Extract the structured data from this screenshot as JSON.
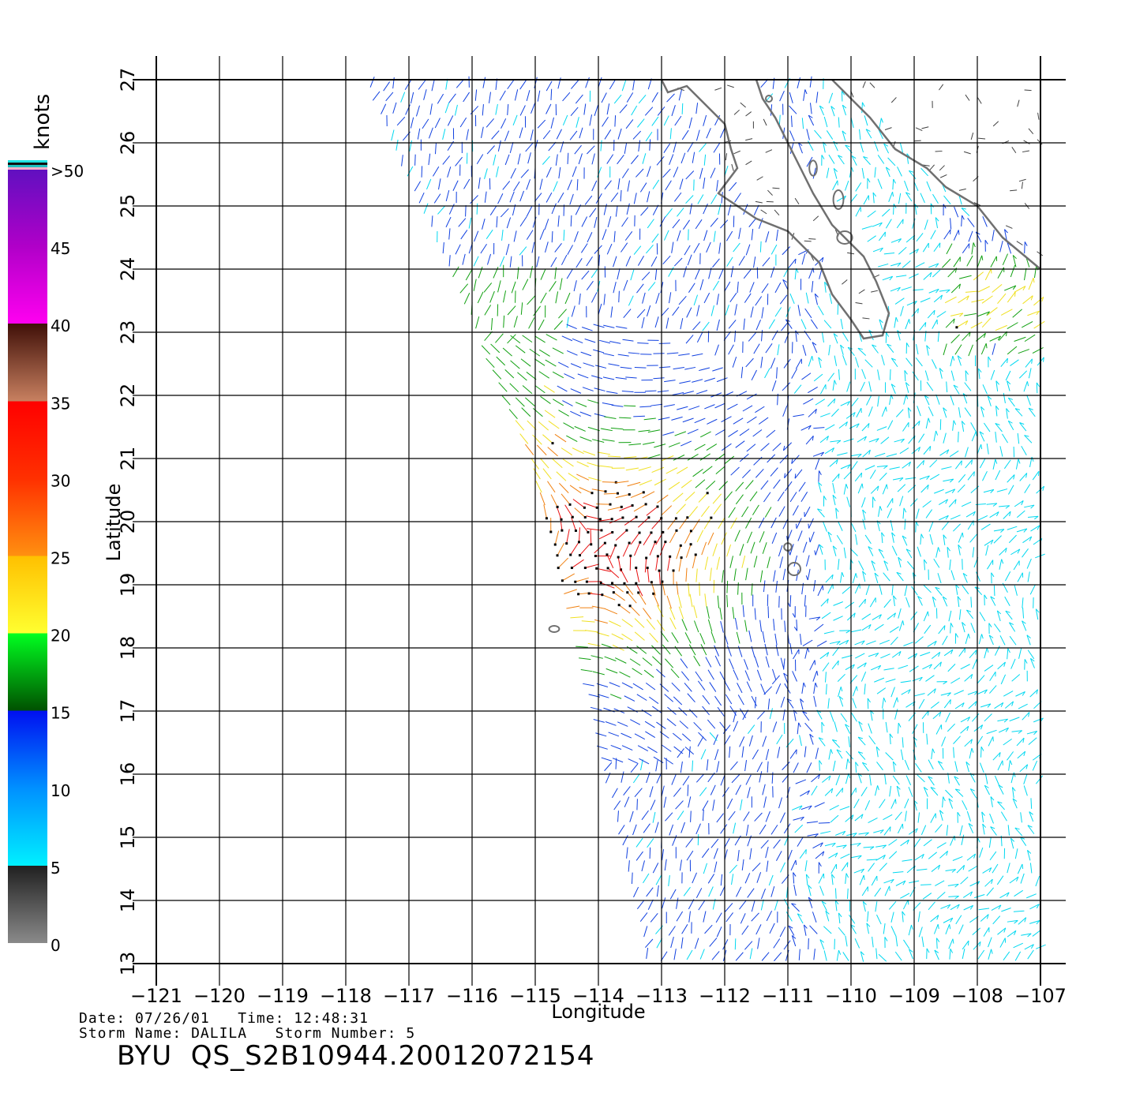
{
  "colorbar": {
    "unit_label": "knots",
    "tick_labels": [
      "0",
      "5",
      "10",
      "15",
      "20",
      "25",
      "30",
      "35",
      "40",
      "45",
      ">50"
    ]
  },
  "map": {
    "lon_range": [
      -121,
      -107
    ],
    "lat_range": [
      13,
      27
    ],
    "x_ticks": [
      "-121",
      "-120",
      "-119",
      "-118",
      "-117",
      "-116",
      "-115",
      "-114",
      "-113",
      "-112",
      "-111",
      "-110",
      "-109",
      "-108",
      "-107"
    ],
    "y_ticks": [
      "13",
      "14",
      "15",
      "16",
      "17",
      "18",
      "19",
      "20",
      "21",
      "22",
      "23",
      "24",
      "25",
      "26",
      "27"
    ],
    "xlabel": "Longitude",
    "ylabel": "Latitude",
    "grid": true
  },
  "metadata": {
    "date_label": "Date:",
    "date": "07/26/01",
    "time_label": "Time:",
    "time": "12:48:31",
    "storm_name_label": "Storm Name:",
    "storm_name": "DALILA",
    "storm_number_label": "Storm Number:",
    "storm_number": "5"
  },
  "file_title": "BYU  QS_S2B10944.20012072154",
  "colors": {
    "speed_0_5": "#555555",
    "speed_5_10": "#00d8f0",
    "speed_10_15": "#1040e0",
    "speed_15_20": "#10a010",
    "speed_20_25": "#f0e020",
    "speed_25_30": "#f08010",
    "speed_30_35": "#e81010",
    "coast": "#707070"
  }
}
